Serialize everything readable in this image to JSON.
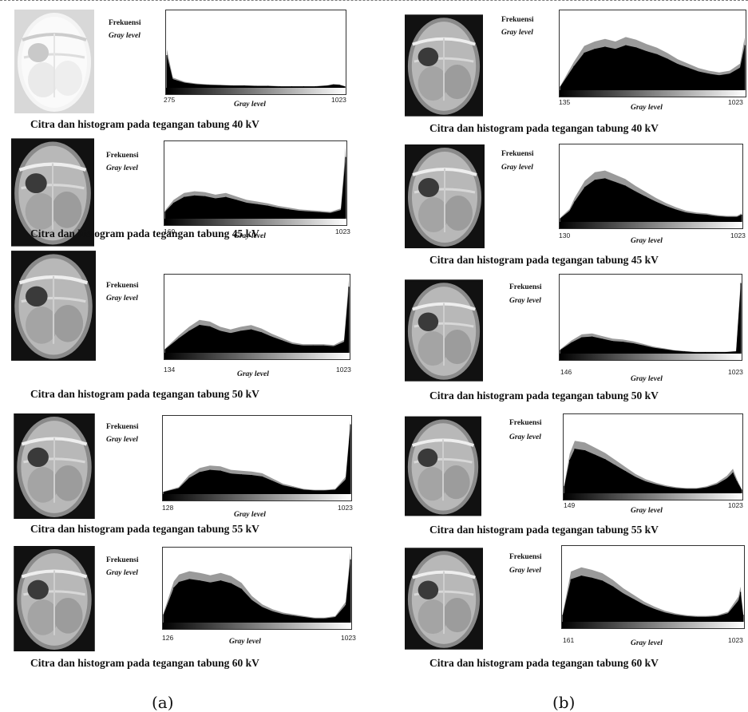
{
  "columns": [
    {
      "label": "(a)",
      "panels": [
        {
          "caption": "Citra dan histogram pada tegangan tabung 40 kV",
          "freq_label": "Frekuensi",
          "gray_label": "Gray level",
          "xlabel": "Gray level",
          "xmin": "275",
          "xmax": "1023"
        },
        {
          "caption": "Citra dan histogram pada tegangan tabung 45 kV",
          "freq_label": "Frekuensi",
          "gray_label": "Gray level",
          "xlabel": "Gray level",
          "xmin": "160",
          "xmax": "1023"
        },
        {
          "caption": "Citra dan histogram pada tegangan tabung 50 kV",
          "freq_label": "Frekuensi",
          "gray_label": "Gray level",
          "xlabel": "Gray level",
          "xmin": "134",
          "xmax": "1023"
        },
        {
          "caption": "Citra dan histogram pada tegangan tabung 55 kV",
          "freq_label": "Frekuensi",
          "gray_label": "Gray level",
          "xlabel": "Gray level",
          "xmin": "128",
          "xmax": "1023"
        },
        {
          "caption": "Citra dan histogram pada tegangan tabung 60 kV",
          "freq_label": "Frekuensi",
          "gray_label": "Gray level",
          "xlabel": "Gray level",
          "xmin": "126",
          "xmax": "1023"
        }
      ]
    },
    {
      "label": "(b)",
      "panels": [
        {
          "caption": "Citra dan histogram pada tegangan tabung 40 kV",
          "freq_label": "Frekuensi",
          "gray_label": "Gray level",
          "xlabel": "Gray level",
          "xmin": "135",
          "xmax": "1023"
        },
        {
          "caption": "Citra dan histogram pada tegangan tabung 45 kV",
          "freq_label": "Frekuensi",
          "gray_label": "Gray level",
          "xlabel": "Gray level",
          "xmin": "130",
          "xmax": "1023"
        },
        {
          "caption": "Citra dan histogram pada tegangan tabung 50 kV",
          "freq_label": "Frekuensi",
          "gray_label": "Gray level",
          "xlabel": "Gray level",
          "xmin": "146",
          "xmax": "1023"
        },
        {
          "caption": "Citra dan histogram pada tegangan tabung 55 kV",
          "freq_label": "Frekuensi",
          "gray_label": "Gray level",
          "xlabel": "Gray level",
          "xmin": "149",
          "xmax": "1023"
        },
        {
          "caption": "Citra dan histogram pada tegangan tabung 60 kV",
          "freq_label": "Frekuensi",
          "gray_label": "Gray level",
          "xlabel": "Gray level",
          "xmin": "161",
          "xmax": "1023"
        }
      ]
    }
  ],
  "chart_data": [
    {
      "type": "area",
      "xlabel": "Gray level",
      "ylabel": "Frekuensi",
      "xlim": [
        275,
        1023
      ],
      "x": [
        275,
        300,
        350,
        400,
        450,
        500,
        550,
        600,
        650,
        700,
        750,
        800,
        850,
        900,
        950,
        975,
        1000,
        1023
      ],
      "y": [
        0.45,
        0.12,
        0.07,
        0.05,
        0.04,
        0.035,
        0.03,
        0.03,
        0.025,
        0.025,
        0.02,
        0.02,
        0.02,
        0.02,
        0.03,
        0.045,
        0.04,
        0.02
      ]
    },
    {
      "type": "area",
      "xlabel": "Gray level",
      "ylabel": "Frekuensi",
      "xlim": [
        160,
        1023
      ],
      "x": [
        160,
        200,
        250,
        300,
        350,
        400,
        450,
        500,
        550,
        600,
        650,
        700,
        750,
        800,
        850,
        900,
        950,
        1000,
        1023
      ],
      "y": [
        0.1,
        0.22,
        0.3,
        0.32,
        0.31,
        0.28,
        0.3,
        0.26,
        0.22,
        0.2,
        0.18,
        0.15,
        0.13,
        0.11,
        0.1,
        0.09,
        0.08,
        0.12,
        0.85
      ]
    },
    {
      "type": "area",
      "xlabel": "Gray level",
      "ylabel": "Frekuensi",
      "xlim": [
        134,
        1023
      ],
      "x": [
        134,
        200,
        250,
        300,
        350,
        400,
        450,
        500,
        550,
        600,
        650,
        700,
        750,
        800,
        850,
        900,
        950,
        1000,
        1023
      ],
      "y": [
        0.05,
        0.2,
        0.3,
        0.38,
        0.36,
        0.3,
        0.27,
        0.3,
        0.32,
        0.28,
        0.22,
        0.17,
        0.12,
        0.1,
        0.1,
        0.1,
        0.09,
        0.15,
        0.9
      ]
    },
    {
      "type": "area",
      "xlabel": "Gray level",
      "ylabel": "Frekuensi",
      "xlim": [
        128,
        1023
      ],
      "x": [
        128,
        200,
        250,
        300,
        350,
        400,
        450,
        500,
        550,
        600,
        650,
        700,
        750,
        800,
        850,
        900,
        950,
        1000,
        1023
      ],
      "y": [
        0.03,
        0.08,
        0.22,
        0.3,
        0.33,
        0.32,
        0.28,
        0.27,
        0.26,
        0.24,
        0.18,
        0.12,
        0.09,
        0.06,
        0.05,
        0.05,
        0.06,
        0.2,
        0.95
      ]
    },
    {
      "type": "area",
      "xlabel": "Gray level",
      "ylabel": "Frekuensi",
      "xlim": [
        126,
        1023
      ],
      "x": [
        126,
        175,
        200,
        250,
        300,
        350,
        400,
        450,
        500,
        550,
        600,
        650,
        700,
        750,
        800,
        850,
        900,
        950,
        1000,
        1023
      ],
      "y": [
        0.12,
        0.5,
        0.58,
        0.62,
        0.6,
        0.57,
        0.6,
        0.56,
        0.48,
        0.32,
        0.22,
        0.16,
        0.12,
        0.1,
        0.08,
        0.06,
        0.06,
        0.08,
        0.25,
        0.9
      ]
    },
    {
      "type": "area",
      "xlabel": "Gray level",
      "ylabel": "Frekuensi",
      "xlim": [
        135,
        1023
      ],
      "x": [
        135,
        200,
        250,
        300,
        350,
        400,
        450,
        500,
        550,
        600,
        650,
        700,
        750,
        800,
        850,
        900,
        950,
        1000,
        1023
      ],
      "y": [
        0.05,
        0.32,
        0.5,
        0.55,
        0.58,
        0.55,
        0.6,
        0.57,
        0.52,
        0.48,
        0.42,
        0.35,
        0.3,
        0.25,
        0.22,
        0.2,
        0.22,
        0.3,
        0.6
      ]
    },
    {
      "type": "area",
      "xlabel": "Gray level",
      "ylabel": "Frekuensi",
      "xlim": [
        130,
        1023
      ],
      "x": [
        130,
        175,
        200,
        250,
        300,
        350,
        400,
        450,
        500,
        550,
        600,
        650,
        700,
        750,
        800,
        850,
        900,
        950,
        1000,
        1023
      ],
      "y": [
        0.05,
        0.15,
        0.28,
        0.48,
        0.58,
        0.6,
        0.55,
        0.5,
        0.42,
        0.35,
        0.28,
        0.22,
        0.17,
        0.13,
        0.11,
        0.1,
        0.08,
        0.07,
        0.07,
        0.1
      ]
    },
    {
      "type": "area",
      "xlabel": "Gray level",
      "ylabel": "Frekuensi",
      "xlim": [
        146,
        1023
      ],
      "x": [
        146,
        200,
        250,
        300,
        350,
        400,
        450,
        500,
        550,
        600,
        650,
        700,
        750,
        800,
        850,
        900,
        950,
        1000,
        1023
      ],
      "y": [
        0.05,
        0.15,
        0.22,
        0.23,
        0.2,
        0.17,
        0.16,
        0.14,
        0.11,
        0.08,
        0.06,
        0.04,
        0.03,
        0.02,
        0.02,
        0.02,
        0.02,
        0.03,
        0.95
      ]
    },
    {
      "type": "area",
      "xlabel": "Gray level",
      "ylabel": "Frekuensi",
      "xlim": [
        149,
        1023
      ],
      "x": [
        149,
        175,
        200,
        250,
        300,
        350,
        400,
        450,
        500,
        550,
        600,
        650,
        700,
        750,
        800,
        850,
        900,
        950,
        980,
        1000,
        1023
      ],
      "y": [
        0.1,
        0.45,
        0.6,
        0.58,
        0.52,
        0.46,
        0.38,
        0.3,
        0.22,
        0.16,
        0.12,
        0.09,
        0.07,
        0.06,
        0.06,
        0.08,
        0.12,
        0.2,
        0.28,
        0.16,
        0.05
      ]
    },
    {
      "type": "area",
      "xlabel": "Gray level",
      "ylabel": "Frekuensi",
      "xlim": [
        161,
        1023
      ],
      "x": [
        161,
        200,
        250,
        300,
        350,
        400,
        450,
        500,
        550,
        600,
        650,
        700,
        750,
        800,
        850,
        900,
        950,
        1000,
        1010,
        1023
      ],
      "y": [
        0.1,
        0.6,
        0.65,
        0.62,
        0.58,
        0.5,
        0.4,
        0.32,
        0.24,
        0.18,
        0.13,
        0.1,
        0.08,
        0.07,
        0.07,
        0.08,
        0.12,
        0.3,
        0.42,
        0.1
      ]
    }
  ]
}
